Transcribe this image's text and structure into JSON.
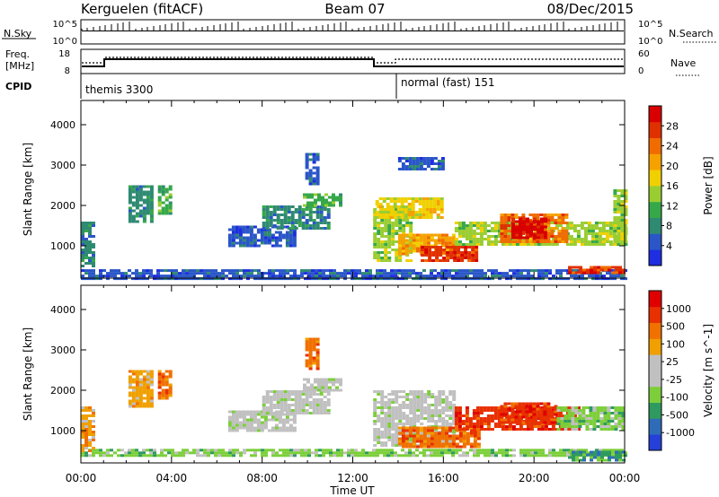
{
  "header": {
    "station": "Kerguelen (fitACF)",
    "beam": "Beam 07",
    "date": "08/Dec/2015"
  },
  "status_panels": {
    "nsky_label": "N.Sky",
    "nsky_ticks": [
      "10^5",
      "10^0"
    ],
    "nsearch_label": "N.Search",
    "nsearch_ticks": [
      "10^5",
      "10^0"
    ],
    "freq_label": [
      "Freq.",
      "[MHz]"
    ],
    "freq_ticks": [
      "18",
      "8"
    ],
    "nave_label": "Nave",
    "nave_ticks": [
      "60",
      "0"
    ],
    "cpid_label": "CPID",
    "cpid_modes": [
      {
        "text": "themis 3300",
        "start_hour": 0,
        "end_hour": 14
      },
      {
        "text": "normal (fast) 151",
        "start_hour": 14,
        "end_hour": 24
      }
    ]
  },
  "chart_data": [
    {
      "type": "heatmap",
      "title": "",
      "quantity": "Power",
      "xlabel": "Time UT",
      "ylabel": "Slant Range [km]",
      "xlim": [
        0,
        24
      ],
      "ylim": [
        200,
        4600
      ],
      "x_tick_labels": [
        "00:00",
        "04:00",
        "08:00",
        "12:00",
        "16:00",
        "20:00",
        "00:00"
      ],
      "y_ticks": [
        1000,
        2000,
        3000,
        4000
      ],
      "colorbar": {
        "label": "Power [dB]",
        "ticks": [
          "4",
          "8",
          "12",
          "16",
          "20",
          "24",
          "28"
        ],
        "colors": [
          "#1e2ee0",
          "#2a56c8",
          "#2f8a72",
          "#36a84a",
          "#9acd32",
          "#f0d000",
          "#f5a200",
          "#f06c00",
          "#e03000",
          "#d80000"
        ]
      },
      "regions": [
        {
          "t0": 0,
          "t1": 24,
          "r0": 200,
          "r1": 420,
          "level": 1
        },
        {
          "t0": 0,
          "t1": 0.5,
          "r0": 500,
          "r1": 1600,
          "level": 2
        },
        {
          "t0": 2.1,
          "t1": 3.2,
          "r0": 1600,
          "r1": 2500,
          "level": 2
        },
        {
          "t0": 3.4,
          "t1": 4.0,
          "r0": 1800,
          "r1": 2500,
          "level": 3
        },
        {
          "t0": 6.5,
          "t1": 9.5,
          "r0": 1000,
          "r1": 1500,
          "level": 1
        },
        {
          "t0": 8.0,
          "t1": 11.0,
          "r0": 1400,
          "r1": 2000,
          "level": 2
        },
        {
          "t0": 9.8,
          "t1": 11.5,
          "r0": 2000,
          "r1": 2300,
          "level": 3
        },
        {
          "t0": 9.9,
          "t1": 10.4,
          "r0": 2500,
          "r1": 3300,
          "level": 1
        },
        {
          "t0": 12.9,
          "t1": 14.5,
          "r0": 600,
          "r1": 2000,
          "level": 4
        },
        {
          "t0": 13.0,
          "t1": 16.0,
          "r0": 1700,
          "r1": 2200,
          "level": 5
        },
        {
          "t0": 14.0,
          "t1": 16.5,
          "r0": 800,
          "r1": 1300,
          "level": 6
        },
        {
          "t0": 15.0,
          "t1": 17.5,
          "r0": 600,
          "r1": 1000,
          "level": 8
        },
        {
          "t0": 14.0,
          "t1": 16.0,
          "r0": 2900,
          "r1": 3200,
          "level": 1
        },
        {
          "t0": 16.5,
          "t1": 24,
          "r0": 1000,
          "r1": 1600,
          "level": 4
        },
        {
          "t0": 18.5,
          "t1": 21.5,
          "r0": 1100,
          "r1": 1800,
          "level": 7
        },
        {
          "t0": 19.0,
          "t1": 20.5,
          "r0": 1200,
          "r1": 1700,
          "level": 9
        },
        {
          "t0": 21.5,
          "t1": 24,
          "r0": 300,
          "r1": 500,
          "level": 8
        },
        {
          "t0": 23.5,
          "t1": 24,
          "r0": 1000,
          "r1": 2400,
          "level": 4
        }
      ]
    },
    {
      "type": "heatmap",
      "title": "",
      "quantity": "Velocity",
      "xlabel": "Time UT",
      "ylabel": "Slant Range [km]",
      "xlim": [
        0,
        24
      ],
      "ylim": [
        200,
        4600
      ],
      "x_tick_labels": [
        "00:00",
        "04:00",
        "08:00",
        "12:00",
        "16:00",
        "20:00",
        "00:00"
      ],
      "y_ticks": [
        1000,
        2000,
        3000,
        4000
      ],
      "colorbar": {
        "label": "Velocity [m s^-1]",
        "ticks": [
          "1000",
          "500",
          "100",
          "25",
          "-25",
          "-100",
          "-500",
          "-1000"
        ],
        "colors": [
          "#2440d8",
          "#2f6cb8",
          "#2f9a60",
          "#7ccf3a",
          "#c0c0c0",
          "#c0c0c0",
          "#f0a000",
          "#f07000",
          "#e83000",
          "#e00000"
        ]
      },
      "regions": [
        {
          "t0": 0,
          "t1": 24,
          "r0": 350,
          "r1": 550,
          "level": 3
        },
        {
          "t0": 0,
          "t1": 0.5,
          "r0": 500,
          "r1": 1600,
          "level": 6
        },
        {
          "t0": 2.1,
          "t1": 3.2,
          "r0": 1600,
          "r1": 2500,
          "level": 6
        },
        {
          "t0": 3.4,
          "t1": 4.0,
          "r0": 1800,
          "r1": 2500,
          "level": 7
        },
        {
          "t0": 6.5,
          "t1": 9.5,
          "r0": 1000,
          "r1": 1500,
          "level": 4
        },
        {
          "t0": 8.0,
          "t1": 11.0,
          "r0": 1400,
          "r1": 2000,
          "level": 4
        },
        {
          "t0": 9.8,
          "t1": 11.5,
          "r0": 2000,
          "r1": 2300,
          "level": 4
        },
        {
          "t0": 9.9,
          "t1": 10.4,
          "r0": 2500,
          "r1": 3300,
          "level": 7
        },
        {
          "t0": 12.9,
          "t1": 16.5,
          "r0": 600,
          "r1": 2000,
          "level": 4
        },
        {
          "t0": 14.0,
          "t1": 17.5,
          "r0": 600,
          "r1": 1100,
          "level": 7
        },
        {
          "t0": 16.5,
          "t1": 22.0,
          "r0": 1000,
          "r1": 1600,
          "level": 8
        },
        {
          "t0": 18.5,
          "t1": 21.0,
          "r0": 1200,
          "r1": 1700,
          "level": 8
        },
        {
          "t0": 21.0,
          "t1": 24,
          "r0": 1000,
          "r1": 1600,
          "level": 3
        },
        {
          "t0": 21.5,
          "t1": 24,
          "r0": 250,
          "r1": 500,
          "level": 2
        }
      ]
    }
  ]
}
